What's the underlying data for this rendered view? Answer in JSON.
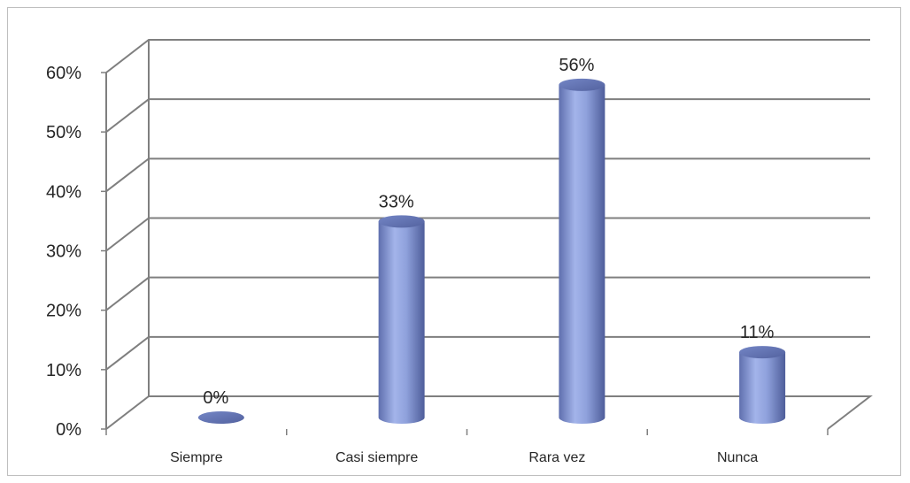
{
  "chart_data": {
    "type": "bar",
    "style": "3d-cylinder",
    "categories": [
      "Siempre",
      "Casi siempre",
      "Rara vez",
      "Nunca"
    ],
    "values": [
      0,
      33,
      56,
      11
    ],
    "data_labels": [
      "0%",
      "33%",
      "56%",
      "11%"
    ],
    "title": "",
    "xlabel": "",
    "ylabel": "",
    "ylim": [
      0,
      60
    ],
    "yticks": [
      "0%",
      "10%",
      "20%",
      "30%",
      "40%",
      "50%",
      "60%"
    ],
    "grid": true,
    "legend": "none",
    "bar_color": "#8497d3",
    "grid_color": "#7f7f7f"
  }
}
